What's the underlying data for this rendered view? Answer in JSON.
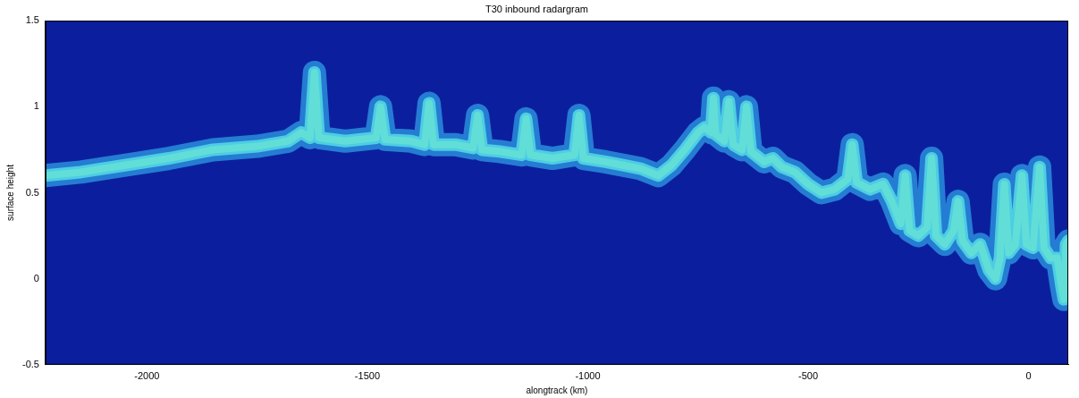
{
  "chart_data": {
    "type": "line",
    "title": "T30 inbound radargram",
    "x_label": "alongtrack (km)",
    "y_label": "surface height",
    "color": "#e01010",
    "grid": false,
    "xlim": [
      -2230,
      90
    ],
    "xticks": [
      -2000,
      -1500,
      -1000,
      -500,
      0
    ],
    "ylim": [
      -0.5,
      1.5
    ],
    "yticks": [
      -0.5,
      0,
      0.5,
      1,
      1.5
    ],
    "x": [
      -2230,
      -2150,
      -2050,
      -1950,
      -1850,
      -1750,
      -1680,
      -1650,
      -1630,
      -1620,
      -1610,
      -1550,
      -1480,
      -1470,
      -1460,
      -1400,
      -1370,
      -1360,
      -1350,
      -1300,
      -1260,
      -1250,
      -1240,
      -1200,
      -1150,
      -1140,
      -1130,
      -1080,
      -1030,
      -1020,
      -1010,
      -960,
      -920,
      -880,
      -860,
      -840,
      -810,
      -780,
      -750,
      -735,
      -720,
      -715,
      -710,
      -690,
      -680,
      -670,
      -650,
      -640,
      -630,
      -600,
      -580,
      -560,
      -530,
      -500,
      -470,
      -440,
      -410,
      -400,
      -390,
      -360,
      -330,
      -310,
      -290,
      -280,
      -270,
      -250,
      -230,
      -220,
      -210,
      -190,
      -170,
      -160,
      -150,
      -130,
      -110,
      -90,
      -75,
      -65,
      -55,
      -45,
      -30,
      -15,
      -5,
      10,
      25,
      35,
      50,
      65,
      75,
      80,
      85,
      90
    ],
    "values": [
      0.6,
      0.62,
      0.66,
      0.7,
      0.75,
      0.77,
      0.8,
      0.85,
      0.82,
      1.2,
      0.82,
      0.8,
      0.82,
      1.0,
      0.81,
      0.8,
      0.78,
      1.02,
      0.78,
      0.78,
      0.76,
      0.95,
      0.75,
      0.74,
      0.72,
      0.93,
      0.72,
      0.7,
      0.72,
      0.95,
      0.7,
      0.68,
      0.66,
      0.64,
      0.62,
      0.6,
      0.66,
      0.75,
      0.85,
      0.88,
      0.85,
      1.05,
      0.84,
      0.8,
      1.03,
      0.78,
      0.75,
      1.0,
      0.74,
      0.68,
      0.7,
      0.65,
      0.62,
      0.55,
      0.5,
      0.52,
      0.58,
      0.78,
      0.56,
      0.52,
      0.55,
      0.45,
      0.32,
      0.6,
      0.28,
      0.25,
      0.3,
      0.7,
      0.25,
      0.2,
      0.28,
      0.45,
      0.22,
      0.15,
      0.2,
      0.05,
      0.0,
      0.12,
      0.55,
      0.15,
      0.2,
      0.6,
      0.2,
      0.18,
      0.65,
      0.18,
      0.12,
      0.12,
      -0.05,
      -0.12,
      0.2,
      0.22
    ]
  }
}
